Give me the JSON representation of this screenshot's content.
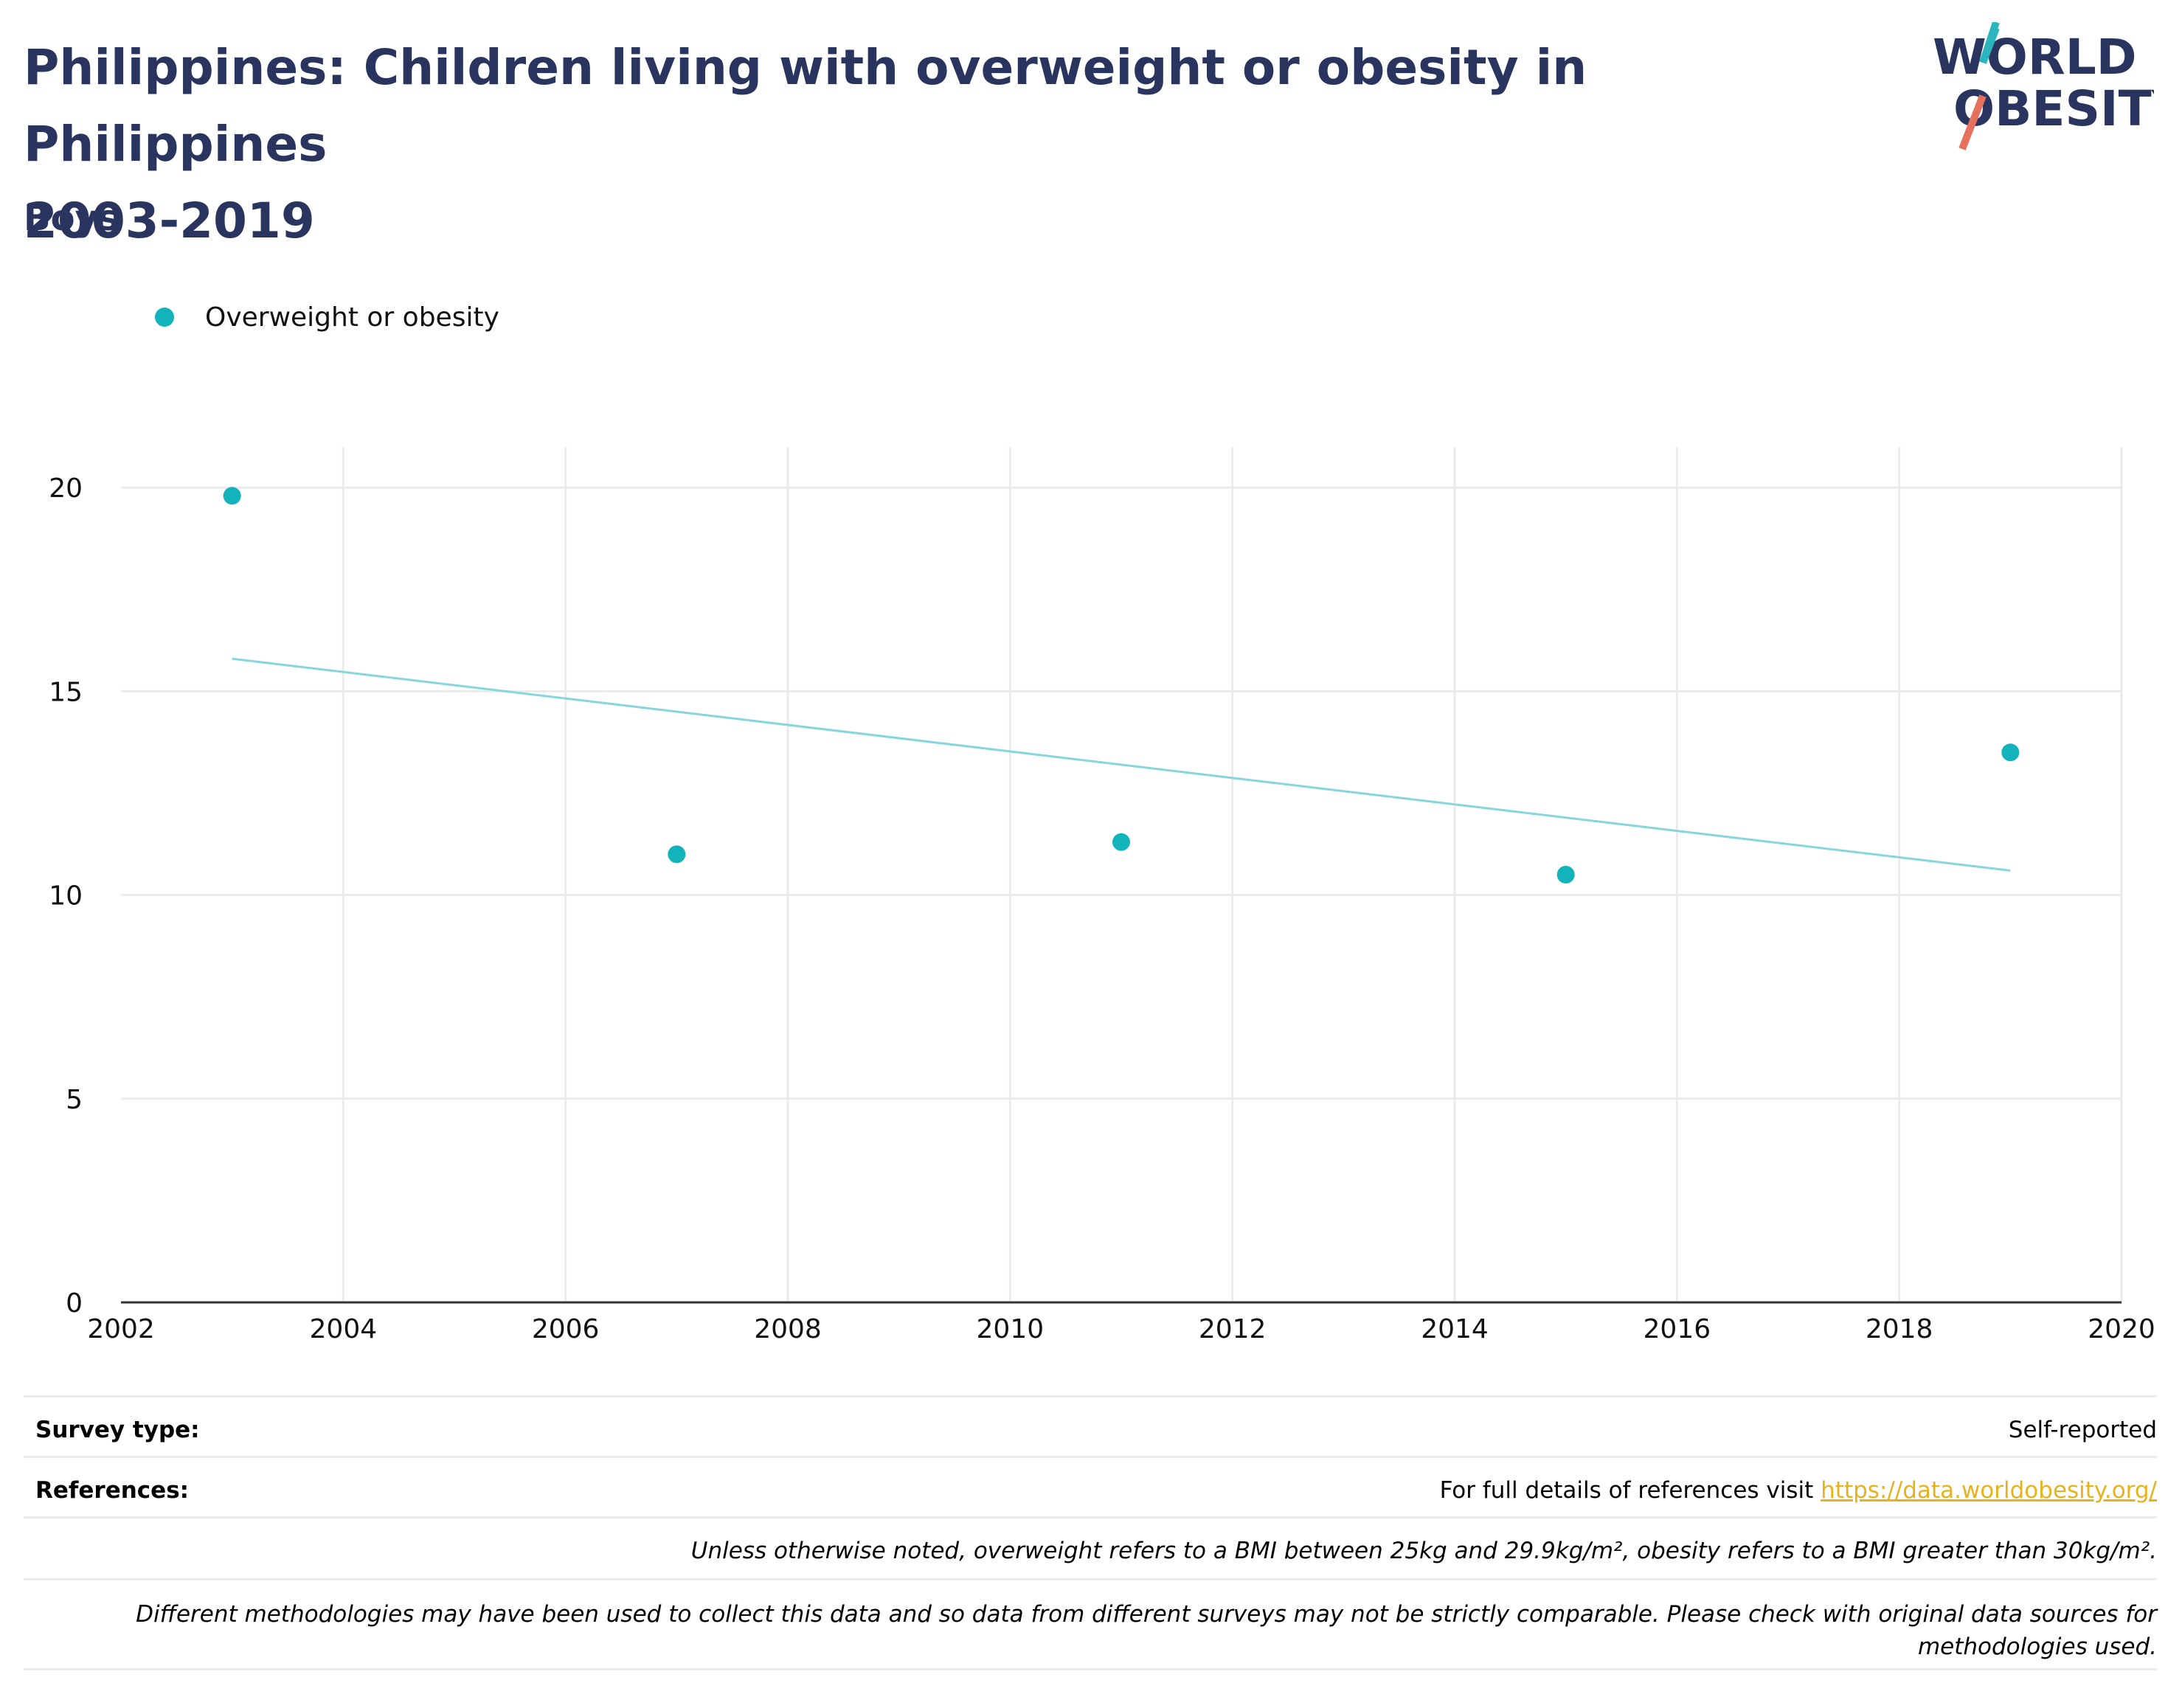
{
  "header": {
    "title_line1": "Philippines: Children living with overweight or obesity in Philippines",
    "title_line2": "2003-2019",
    "subtitle": "Boys",
    "logo_text_1": "WORLD",
    "logo_text_2": "OBESITY"
  },
  "colors": {
    "title": "#29355f",
    "series": "#12b3bb",
    "trend": "#86d6db",
    "grid": "#ebebeb",
    "link": "#e6b31e",
    "logo_teal": "#2bb6bd",
    "logo_coral": "#e6705e"
  },
  "chart_data": {
    "type": "scatter",
    "title": "Philippines: Children living with overweight or obesity in Philippines 2003-2019",
    "subtitle": "Boys",
    "xlim": [
      2002,
      2020
    ],
    "ylim": [
      0,
      21
    ],
    "x_ticks": [
      2002,
      2004,
      2006,
      2008,
      2010,
      2012,
      2014,
      2016,
      2018,
      2020
    ],
    "y_ticks": [
      0,
      5,
      10,
      15,
      20
    ],
    "grid": true,
    "legend_position": "top-left",
    "series": [
      {
        "name": "Overweight or obesity",
        "x": [
          2003,
          2007,
          2011,
          2015,
          2019
        ],
        "y": [
          19.8,
          11.0,
          11.3,
          10.5,
          13.5
        ]
      }
    ],
    "trendline": {
      "x": [
        2003,
        2019
      ],
      "y": [
        15.8,
        10.6
      ]
    }
  },
  "footer": {
    "survey_type_label": "Survey type:",
    "survey_type_value": "Self-reported",
    "references_label": "References:",
    "references_text": "For full details of references visit ",
    "references_link": "https://data.worldobesity.org/",
    "note_bmi": "Unless otherwise noted, overweight refers to a BMI between 25kg and 29.9kg/m², obesity refers to a BMI greater than 30kg/m².",
    "note_methods_line1": "Different methodologies may have been used to collect this data and so data from different surveys may not be strictly comparable. Please check with original data sources for",
    "note_methods_line2": "methodologies used."
  }
}
